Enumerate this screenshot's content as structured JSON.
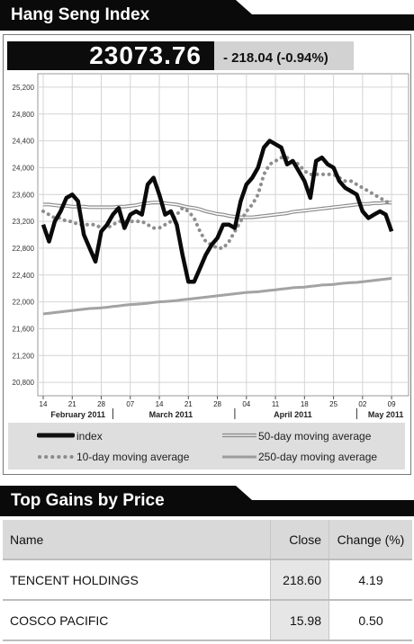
{
  "index_header": {
    "title": "Hang Seng Index"
  },
  "quote": {
    "price": "23073.76",
    "change": "- 218.04 (-0.94%)"
  },
  "chart_data": {
    "type": "line",
    "ylim": [
      20600,
      25400
    ],
    "y_ticks": [
      "25,200",
      "24,800",
      "24,400",
      "24,000",
      "23,600",
      "23,200",
      "22,800",
      "22,400",
      "22,000",
      "21,600",
      "21,200",
      "20,800"
    ],
    "y_tick_values": [
      25200,
      24800,
      24400,
      24000,
      23600,
      23200,
      22800,
      22400,
      22000,
      21600,
      21200,
      20800
    ],
    "day_ticks": [
      "14",
      "21",
      "28",
      "07",
      "14",
      "21",
      "28",
      "04",
      "11",
      "18",
      "25",
      "02",
      "09"
    ],
    "day_tick_index": [
      0,
      5,
      10,
      15,
      20,
      25,
      30,
      35,
      40,
      45,
      50,
      55,
      60
    ],
    "month_labels": [
      "February 2011",
      "March 2011",
      "April 2011",
      "May 2011"
    ],
    "month_label_index": [
      6,
      22,
      43,
      59
    ],
    "month_separator_index": [
      12,
      33,
      54
    ],
    "x_count": 63,
    "grid": true,
    "legend_position": "bottom",
    "series": [
      {
        "name": "index",
        "style": "thick-black",
        "values": [
          23150,
          22900,
          23200,
          23350,
          23550,
          23600,
          23500,
          23000,
          22800,
          22600,
          23050,
          23150,
          23300,
          23400,
          23100,
          23300,
          23350,
          23300,
          23750,
          23850,
          23600,
          23300,
          23350,
          23150,
          22700,
          22300,
          22300,
          22500,
          22700,
          22850,
          22950,
          23150,
          23150,
          23100,
          23500,
          23750,
          23850,
          24000,
          24300,
          24400,
          24350,
          24300,
          24050,
          24100,
          23950,
          23800,
          23550,
          24100,
          24150,
          24050,
          24000,
          23800,
          23700,
          23650,
          23600,
          23350,
          23250,
          23300,
          23350,
          23300,
          23050
        ]
      },
      {
        "name": "10-day moving average",
        "style": "dotted-gray",
        "values": [
          23350,
          23300,
          23250,
          23250,
          23200,
          23200,
          23150,
          23150,
          23150,
          23150,
          23100,
          23100,
          23150,
          23200,
          23200,
          23200,
          23200,
          23200,
          23150,
          23100,
          23100,
          23150,
          23200,
          23300,
          23400,
          23350,
          23250,
          23050,
          22900,
          22850,
          22800,
          22800,
          22900,
          23050,
          23200,
          23350,
          23450,
          23600,
          23900,
          24050,
          24100,
          24150,
          24150,
          24100,
          24050,
          23950,
          23900,
          23900,
          23900,
          23900,
          23900,
          23850,
          23800,
          23800,
          23750,
          23700,
          23650,
          23600,
          23550,
          23500,
          23450
        ]
      },
      {
        "name": "50-day moving average",
        "style": "double-gray",
        "values": [
          23450,
          23450,
          23440,
          23430,
          23430,
          23420,
          23420,
          23420,
          23410,
          23410,
          23410,
          23410,
          23410,
          23420,
          23420,
          23430,
          23440,
          23460,
          23470,
          23480,
          23480,
          23470,
          23460,
          23450,
          23430,
          23410,
          23400,
          23380,
          23350,
          23330,
          23310,
          23300,
          23280,
          23270,
          23260,
          23260,
          23260,
          23270,
          23280,
          23290,
          23300,
          23310,
          23320,
          23340,
          23350,
          23360,
          23370,
          23380,
          23390,
          23400,
          23410,
          23420,
          23430,
          23440,
          23450,
          23460,
          23460,
          23470,
          23470,
          23480,
          23480
        ]
      },
      {
        "name": "250-day moving average",
        "style": "thick-gray",
        "values": [
          21820,
          21830,
          21840,
          21850,
          21860,
          21870,
          21880,
          21890,
          21900,
          21905,
          21910,
          21920,
          21930,
          21940,
          21950,
          21960,
          21965,
          21970,
          21980,
          21990,
          22000,
          22005,
          22010,
          22020,
          22030,
          22040,
          22050,
          22060,
          22070,
          22080,
          22090,
          22100,
          22110,
          22120,
          22130,
          22140,
          22145,
          22150,
          22160,
          22170,
          22180,
          22190,
          22200,
          22210,
          22215,
          22220,
          22230,
          22240,
          22250,
          22255,
          22260,
          22270,
          22280,
          22285,
          22290,
          22300,
          22310,
          22320,
          22330,
          22340,
          22350
        ]
      }
    ]
  },
  "legend": {
    "index": "index",
    "ma10": "10-day moving average",
    "ma50": "50-day moving average",
    "ma250": "250-day moving average"
  },
  "gains_header": {
    "title": "Top Gains by Price"
  },
  "gains_table": {
    "col_name": "Name",
    "col_close": "Close",
    "col_change": "Change (%)",
    "rows": [
      {
        "name": "TENCENT HOLDINGS",
        "close": "218.60",
        "change": "4.19"
      },
      {
        "name": "COSCO PACIFIC",
        "close": "15.98",
        "change": "0.50"
      }
    ]
  }
}
